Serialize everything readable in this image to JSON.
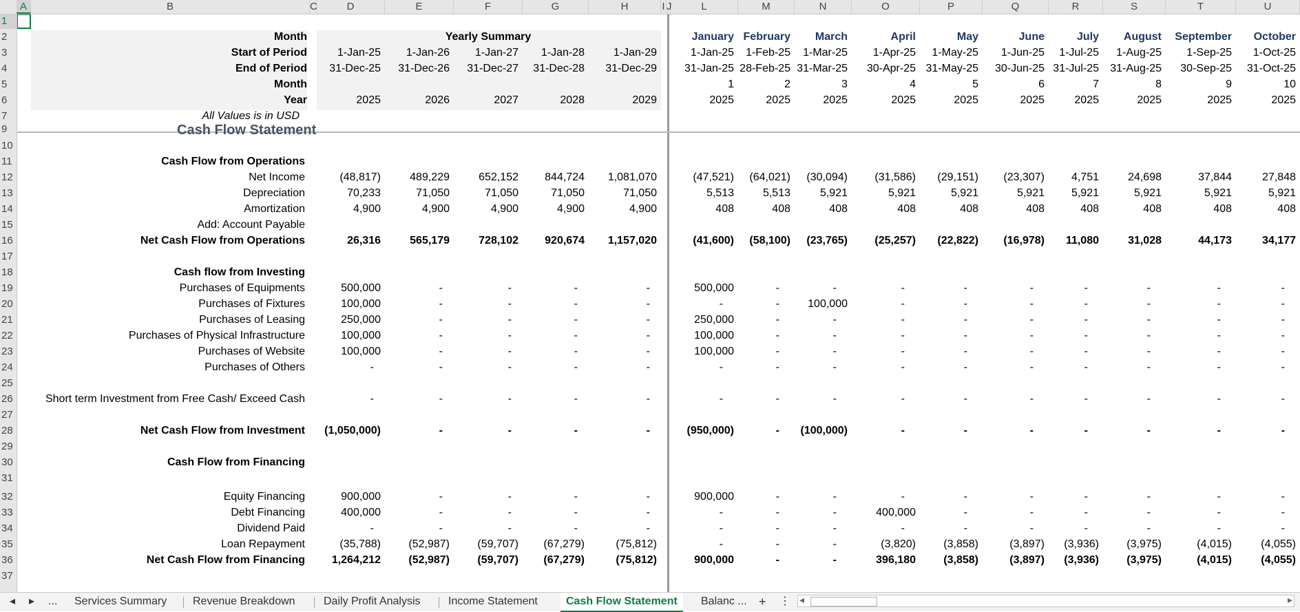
{
  "col_letters": [
    "A",
    "B",
    "C",
    "D",
    "E",
    "F",
    "G",
    "H",
    "I",
    "J",
    "L",
    "M",
    "N",
    "O",
    "P",
    "Q",
    "R",
    "S",
    "T",
    "U"
  ],
  "row_numbers": [
    "1",
    "2",
    "3",
    "4",
    "5",
    "6",
    "7",
    "9",
    "10",
    "11",
    "12",
    "13",
    "14",
    "15",
    "16",
    "17",
    "18",
    "19",
    "20",
    "21",
    "22",
    "23",
    "24",
    "25",
    "26",
    "27",
    "28",
    "29",
    "30",
    "31",
    "32",
    "33",
    "34",
    "35",
    "36",
    "37"
  ],
  "header_labels": {
    "month": "Month",
    "start": "Start of Period",
    "end": "End of Period",
    "month_no": "Month",
    "year": "Year",
    "note": "All Values is in USD",
    "yearly_summary": "Yearly Summary"
  },
  "yearly": {
    "start": [
      "1-Jan-25",
      "1-Jan-26",
      "1-Jan-27",
      "1-Jan-28",
      "1-Jan-29"
    ],
    "end": [
      "31-Dec-25",
      "31-Dec-26",
      "31-Dec-27",
      "31-Dec-28",
      "31-Dec-29"
    ],
    "year": [
      "2025",
      "2026",
      "2027",
      "2028",
      "2029"
    ]
  },
  "monthly": {
    "names": [
      "January",
      "February",
      "March",
      "April",
      "May",
      "June",
      "July",
      "August",
      "September",
      "October"
    ],
    "start": [
      "1-Jan-25",
      "1-Feb-25",
      "1-Mar-25",
      "1-Apr-25",
      "1-May-25",
      "1-Jun-25",
      "1-Jul-25",
      "1-Aug-25",
      "1-Sep-25",
      "1-Oct-25"
    ],
    "end": [
      "31-Jan-25",
      "28-Feb-25",
      "31-Mar-25",
      "30-Apr-25",
      "31-May-25",
      "30-Jun-25",
      "31-Jul-25",
      "31-Aug-25",
      "30-Sep-25",
      "31-Oct-25"
    ],
    "month_no": [
      "1",
      "2",
      "3",
      "4",
      "5",
      "6",
      "7",
      "8",
      "9",
      "10"
    ],
    "year": [
      "2025",
      "2025",
      "2025",
      "2025",
      "2025",
      "2025",
      "2025",
      "2025",
      "2025",
      "2025"
    ]
  },
  "section_title": "Cash Flow Statement",
  "rows": [
    {
      "label": "Cash Flow from Operations",
      "bold": true,
      "heading": true,
      "y": 11,
      "yearly": [],
      "monthly": []
    },
    {
      "label": "Net Income",
      "y": 12,
      "yearly": [
        "(48,817)",
        "489,229",
        "652,152",
        "844,724",
        "1,081,070"
      ],
      "monthly": [
        "(47,521)",
        "(64,021)",
        "(30,094)",
        "(31,586)",
        "(29,151)",
        "(23,307)",
        "4,751",
        "24,698",
        "37,844",
        "27,848"
      ]
    },
    {
      "label": "Depreciation",
      "y": 13,
      "yearly": [
        "70,233",
        "71,050",
        "71,050",
        "71,050",
        "71,050"
      ],
      "monthly": [
        "5,513",
        "5,513",
        "5,921",
        "5,921",
        "5,921",
        "5,921",
        "5,921",
        "5,921",
        "5,921",
        "5,921"
      ]
    },
    {
      "label": "Amortization",
      "y": 14,
      "yearly": [
        "4,900",
        "4,900",
        "4,900",
        "4,900",
        "4,900"
      ],
      "monthly": [
        "408",
        "408",
        "408",
        "408",
        "408",
        "408",
        "408",
        "408",
        "408",
        "408"
      ]
    },
    {
      "label": "Add: Account Payable",
      "y": 15,
      "yearly": [],
      "monthly": []
    },
    {
      "label": "Net Cash Flow from Operations",
      "bold": true,
      "y": 16,
      "yearly": [
        "26,316",
        "565,179",
        "728,102",
        "920,674",
        "1,157,020"
      ],
      "monthly": [
        "(41,600)",
        "(58,100)",
        "(23,765)",
        "(25,257)",
        "(22,822)",
        "(16,978)",
        "11,080",
        "31,028",
        "44,173",
        "34,177"
      ]
    },
    {
      "label": "Cash flow from Investing",
      "bold": true,
      "heading": true,
      "y": 18,
      "yearly": [],
      "monthly": []
    },
    {
      "label": "Purchases of Equipments",
      "y": 19,
      "yearly": [
        "500,000",
        "-",
        "-",
        "-",
        "-"
      ],
      "monthly": [
        "500,000",
        "-",
        "-",
        "-",
        "-",
        "-",
        "-",
        "-",
        "-",
        "-"
      ]
    },
    {
      "label": "Purchases of Fixtures",
      "y": 20,
      "yearly": [
        "100,000",
        "-",
        "-",
        "-",
        "-"
      ],
      "monthly": [
        "-",
        "-",
        "100,000",
        "-",
        "-",
        "-",
        "-",
        "-",
        "-",
        "-"
      ]
    },
    {
      "label": "Purchases of Leasing",
      "y": 21,
      "yearly": [
        "250,000",
        "-",
        "-",
        "-",
        "-"
      ],
      "monthly": [
        "250,000",
        "-",
        "-",
        "-",
        "-",
        "-",
        "-",
        "-",
        "-",
        "-"
      ]
    },
    {
      "label": "Purchases of Physical Infrastructure",
      "y": 22,
      "yearly": [
        "100,000",
        "-",
        "-",
        "-",
        "-"
      ],
      "monthly": [
        "100,000",
        "-",
        "-",
        "-",
        "-",
        "-",
        "-",
        "-",
        "-",
        "-"
      ]
    },
    {
      "label": "Purchases of Website",
      "y": 23,
      "yearly": [
        "100,000",
        "-",
        "-",
        "-",
        "-"
      ],
      "monthly": [
        "100,000",
        "-",
        "-",
        "-",
        "-",
        "-",
        "-",
        "-",
        "-",
        "-"
      ]
    },
    {
      "label": "Purchases of Others",
      "y": 24,
      "yearly": [
        "-",
        "-",
        "-",
        "-",
        "-"
      ],
      "monthly": [
        "-",
        "-",
        "-",
        "-",
        "-",
        "-",
        "-",
        "-",
        "-",
        "-"
      ]
    },
    {
      "label": "Short term Investment from Free Cash/ Exceed Cash",
      "y": 26,
      "yearly": [
        "-",
        "-",
        "-",
        "-",
        "-"
      ],
      "monthly": [
        "-",
        "-",
        "-",
        "-",
        "-",
        "-",
        "-",
        "-",
        "-",
        "-"
      ]
    },
    {
      "label": "Net Cash Flow from Investment",
      "bold": true,
      "y": 28,
      "yearly": [
        "(1,050,000)",
        "-",
        "-",
        "-",
        "-"
      ],
      "monthly": [
        "(950,000)",
        "-",
        "(100,000)",
        "-",
        "-",
        "-",
        "-",
        "-",
        "-",
        "-"
      ]
    },
    {
      "label": "Cash Flow from Financing",
      "bold": true,
      "heading": true,
      "y": 30,
      "yearly": [],
      "monthly": []
    },
    {
      "label": "Equity Financing",
      "y": 32,
      "yearly": [
        "900,000",
        "-",
        "-",
        "-",
        "-"
      ],
      "monthly": [
        "900,000",
        "-",
        "-",
        "-",
        "-",
        "-",
        "-",
        "-",
        "-",
        "-"
      ]
    },
    {
      "label": "Debt Financing",
      "y": 33,
      "yearly": [
        "400,000",
        "-",
        "-",
        "-",
        "-"
      ],
      "monthly": [
        "-",
        "-",
        "-",
        "400,000",
        "-",
        "-",
        "-",
        "-",
        "-",
        "-"
      ]
    },
    {
      "label": "Dividend  Paid",
      "y": 34,
      "yearly": [
        "-",
        "-",
        "-",
        "-",
        "-"
      ],
      "monthly": [
        "-",
        "-",
        "-",
        "-",
        "-",
        "-",
        "-",
        "-",
        "-",
        "-"
      ]
    },
    {
      "label": "Loan Repayment",
      "y": 35,
      "yearly": [
        "(35,788)",
        "(52,987)",
        "(59,707)",
        "(67,279)",
        "(75,812)"
      ],
      "monthly": [
        "-",
        "-",
        "-",
        "(3,820)",
        "(3,858)",
        "(3,897)",
        "(3,936)",
        "(3,975)",
        "(4,015)",
        "(4,055)"
      ]
    },
    {
      "label": "Net Cash Flow from Financing",
      "bold": true,
      "y": 36,
      "yearly": [
        "1,264,212",
        "(52,987)",
        "(59,707)",
        "(67,279)",
        "(75,812)"
      ],
      "monthly": [
        "900,000",
        "-",
        "-",
        "396,180",
        "(3,858)",
        "(3,897)",
        "(3,936)",
        "(3,975)",
        "(4,015)",
        "(4,055)"
      ]
    }
  ],
  "tabs": [
    "Services Summary",
    "Revenue Breakdown",
    "Daily Profit Analysis",
    "Income Statement",
    "Cash Flow Statement",
    "Balanc ..."
  ],
  "nav": {
    "prev": "◂",
    "next": "▸",
    "more": "...",
    "add": "+",
    "opts": "⋮",
    "scroll_left": "◂",
    "scroll_right": "▸"
  },
  "colors": {
    "accent": "#107c41",
    "navy": "#1f3864",
    "section": "#44546a"
  }
}
